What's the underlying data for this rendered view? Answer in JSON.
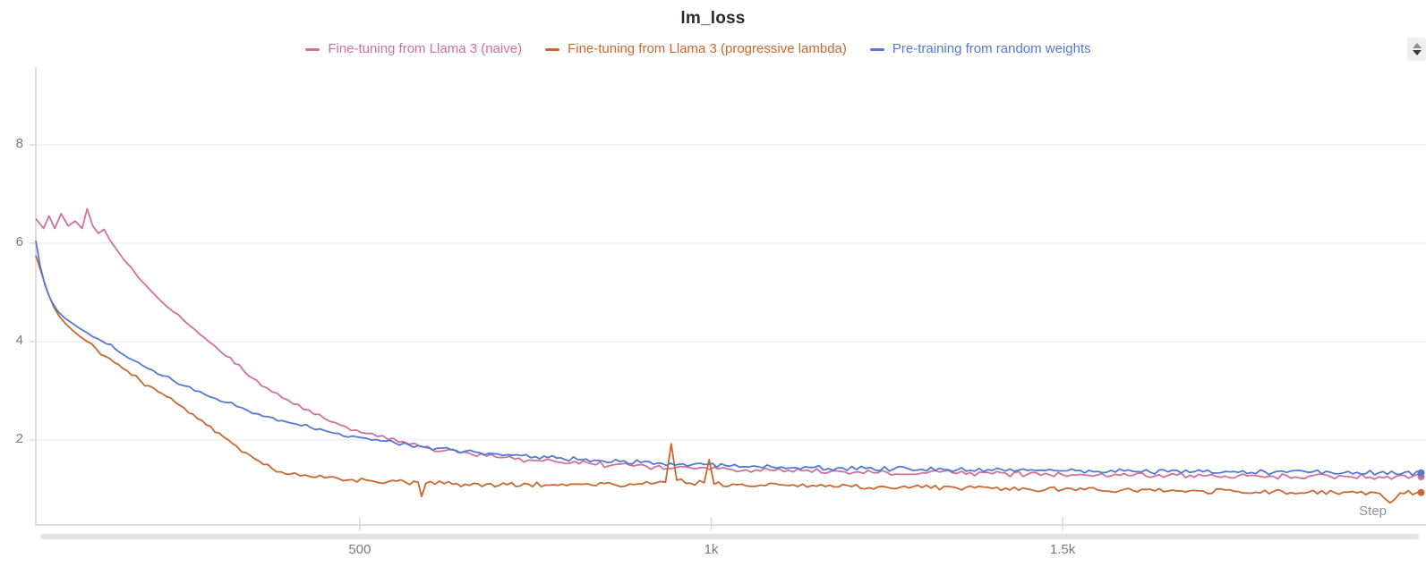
{
  "header": {
    "title": "lm_loss"
  },
  "icons": {
    "stepper": "up-down-stepper-icon",
    "stepper_up": "triangle-up-icon",
    "stepper_down": "triangle-down-icon"
  },
  "chart_data": {
    "type": "line",
    "title": "lm_loss",
    "xlabel": "Step",
    "ylabel": "",
    "grid": "horizontal",
    "legend_position": "top-center",
    "xlim": [
      39,
      2017
    ],
    "ylim": [
      0.27,
      9.58
    ],
    "x_ticks": [
      {
        "value": 500,
        "label": "500"
      },
      {
        "value": 1000,
        "label": "1k"
      },
      {
        "value": 1500,
        "label": "1.5k"
      }
    ],
    "y_ticks": [
      {
        "value": 2,
        "label": "2"
      },
      {
        "value": 4,
        "label": "4"
      },
      {
        "value": 6,
        "label": "6"
      },
      {
        "value": 8,
        "label": "8"
      }
    ],
    "series": [
      {
        "name": "Fine-tuning from Llama 3 (naive)",
        "color": "#d0719c",
        "noise": 0.055,
        "points": [
          [
            39,
            6.5
          ],
          [
            50,
            6.3
          ],
          [
            58,
            6.55
          ],
          [
            66,
            6.3
          ],
          [
            75,
            6.6
          ],
          [
            85,
            6.35
          ],
          [
            95,
            6.45
          ],
          [
            105,
            6.3
          ],
          [
            112,
            6.7
          ],
          [
            120,
            6.35
          ],
          [
            128,
            6.2
          ],
          [
            136,
            6.28
          ],
          [
            145,
            6.05
          ],
          [
            155,
            5.85
          ],
          [
            165,
            5.65
          ],
          [
            175,
            5.5
          ],
          [
            185,
            5.3
          ],
          [
            195,
            5.15
          ],
          [
            205,
            5.0
          ],
          [
            215,
            4.85
          ],
          [
            225,
            4.72
          ],
          [
            235,
            4.6
          ],
          [
            248,
            4.45
          ],
          [
            260,
            4.3
          ],
          [
            272,
            4.15
          ],
          [
            285,
            4.0
          ],
          [
            298,
            3.85
          ],
          [
            310,
            3.7
          ],
          [
            322,
            3.55
          ],
          [
            335,
            3.4
          ],
          [
            348,
            3.25
          ],
          [
            360,
            3.1
          ],
          [
            375,
            2.98
          ],
          [
            390,
            2.85
          ],
          [
            405,
            2.73
          ],
          [
            420,
            2.62
          ],
          [
            435,
            2.52
          ],
          [
            450,
            2.43
          ],
          [
            465,
            2.35
          ],
          [
            480,
            2.27
          ],
          [
            495,
            2.2
          ],
          [
            510,
            2.13
          ],
          [
            525,
            2.07
          ],
          [
            540,
            2.01
          ],
          [
            555,
            1.96
          ],
          [
            570,
            1.91
          ],
          [
            585,
            1.87
          ],
          [
            600,
            1.83
          ],
          [
            620,
            1.78
          ],
          [
            640,
            1.74
          ],
          [
            660,
            1.7
          ],
          [
            680,
            1.67
          ],
          [
            700,
            1.64
          ],
          [
            720,
            1.61
          ],
          [
            740,
            1.59
          ],
          [
            760,
            1.57
          ],
          [
            780,
            1.55
          ],
          [
            800,
            1.53
          ],
          [
            830,
            1.51
          ],
          [
            860,
            1.49
          ],
          [
            890,
            1.47
          ],
          [
            920,
            1.45
          ],
          [
            950,
            1.44
          ],
          [
            980,
            1.42
          ],
          [
            1010,
            1.41
          ],
          [
            1050,
            1.39
          ],
          [
            1090,
            1.38
          ],
          [
            1130,
            1.37
          ],
          [
            1170,
            1.36
          ],
          [
            1210,
            1.35
          ],
          [
            1250,
            1.34
          ],
          [
            1300,
            1.33
          ],
          [
            1350,
            1.32
          ],
          [
            1400,
            1.31
          ],
          [
            1450,
            1.3
          ],
          [
            1500,
            1.29
          ],
          [
            1550,
            1.29
          ],
          [
            1600,
            1.28
          ],
          [
            1650,
            1.28
          ],
          [
            1700,
            1.27
          ],
          [
            1750,
            1.27
          ],
          [
            1800,
            1.26
          ],
          [
            1850,
            1.26
          ],
          [
            1900,
            1.26
          ],
          [
            1950,
            1.25
          ],
          [
            2010,
            1.25
          ]
        ]
      },
      {
        "name": "Fine-tuning from Llama 3 (progressive lambda)",
        "color": "#c8682f",
        "noise": 0.05,
        "points": [
          [
            39,
            5.75
          ],
          [
            48,
            5.35
          ],
          [
            56,
            5.0
          ],
          [
            64,
            4.72
          ],
          [
            72,
            4.52
          ],
          [
            82,
            4.35
          ],
          [
            92,
            4.22
          ],
          [
            102,
            4.1
          ],
          [
            112,
            4.0
          ],
          [
            125,
            3.85
          ],
          [
            138,
            3.7
          ],
          [
            150,
            3.58
          ],
          [
            163,
            3.45
          ],
          [
            175,
            3.32
          ],
          [
            188,
            3.2
          ],
          [
            200,
            3.1
          ],
          [
            213,
            2.98
          ],
          [
            225,
            2.88
          ],
          [
            238,
            2.76
          ],
          [
            250,
            2.65
          ],
          [
            263,
            2.52
          ],
          [
            275,
            2.4
          ],
          [
            288,
            2.27
          ],
          [
            300,
            2.14
          ],
          [
            313,
            2.0
          ],
          [
            325,
            1.87
          ],
          [
            338,
            1.74
          ],
          [
            350,
            1.62
          ],
          [
            363,
            1.5
          ],
          [
            375,
            1.42
          ],
          [
            388,
            1.35
          ],
          [
            400,
            1.3
          ],
          [
            415,
            1.27
          ],
          [
            430,
            1.25
          ],
          [
            450,
            1.23
          ],
          [
            470,
            1.21
          ],
          [
            490,
            1.19
          ],
          [
            515,
            1.17
          ],
          [
            540,
            1.15
          ],
          [
            565,
            1.14
          ],
          [
            583,
            1.14
          ],
          [
            588,
            0.85
          ],
          [
            594,
            1.12
          ],
          [
            620,
            1.11
          ],
          [
            650,
            1.1
          ],
          [
            680,
            1.1
          ],
          [
            710,
            1.09
          ],
          [
            740,
            1.1
          ],
          [
            770,
            1.08
          ],
          [
            800,
            1.1
          ],
          [
            830,
            1.08
          ],
          [
            860,
            1.1
          ],
          [
            890,
            1.09
          ],
          [
            920,
            1.12
          ],
          [
            935,
            1.14
          ],
          [
            943,
            1.92
          ],
          [
            951,
            1.18
          ],
          [
            970,
            1.12
          ],
          [
            990,
            1.13
          ],
          [
            997,
            1.6
          ],
          [
            1004,
            1.1
          ],
          [
            1030,
            1.1
          ],
          [
            1070,
            1.08
          ],
          [
            1110,
            1.07
          ],
          [
            1150,
            1.06
          ],
          [
            1200,
            1.05
          ],
          [
            1250,
            1.04
          ],
          [
            1300,
            1.03
          ],
          [
            1350,
            1.02
          ],
          [
            1400,
            1.01
          ],
          [
            1450,
            1.0
          ],
          [
            1500,
            0.99
          ],
          [
            1550,
            0.98
          ],
          [
            1600,
            0.97
          ],
          [
            1650,
            0.96
          ],
          [
            1700,
            0.96
          ],
          [
            1750,
            0.95
          ],
          [
            1800,
            0.95
          ],
          [
            1850,
            0.94
          ],
          [
            1900,
            0.94
          ],
          [
            1944,
            0.93
          ],
          [
            1966,
            0.72
          ],
          [
            1980,
            0.92
          ],
          [
            2010,
            0.93
          ]
        ]
      },
      {
        "name": "Pre-training from random weights",
        "color": "#5379d6",
        "noise": 0.05,
        "points": [
          [
            39,
            6.05
          ],
          [
            45,
            5.55
          ],
          [
            52,
            5.15
          ],
          [
            60,
            4.85
          ],
          [
            70,
            4.62
          ],
          [
            80,
            4.48
          ],
          [
            90,
            4.38
          ],
          [
            100,
            4.28
          ],
          [
            112,
            4.18
          ],
          [
            128,
            4.05
          ],
          [
            140,
            3.95
          ],
          [
            152,
            3.85
          ],
          [
            165,
            3.72
          ],
          [
            178,
            3.62
          ],
          [
            190,
            3.52
          ],
          [
            205,
            3.42
          ],
          [
            220,
            3.3
          ],
          [
            235,
            3.2
          ],
          [
            250,
            3.1
          ],
          [
            265,
            3.0
          ],
          [
            280,
            2.92
          ],
          [
            295,
            2.84
          ],
          [
            310,
            2.76
          ],
          [
            325,
            2.68
          ],
          [
            340,
            2.6
          ],
          [
            355,
            2.53
          ],
          [
            370,
            2.47
          ],
          [
            390,
            2.39
          ],
          [
            410,
            2.32
          ],
          [
            430,
            2.25
          ],
          [
            450,
            2.19
          ],
          [
            470,
            2.13
          ],
          [
            490,
            2.08
          ],
          [
            510,
            2.03
          ],
          [
            530,
            1.98
          ],
          [
            550,
            1.94
          ],
          [
            570,
            1.9
          ],
          [
            590,
            1.86
          ],
          [
            610,
            1.83
          ],
          [
            630,
            1.8
          ],
          [
            650,
            1.77
          ],
          [
            670,
            1.74
          ],
          [
            690,
            1.72
          ],
          [
            710,
            1.7
          ],
          [
            730,
            1.68
          ],
          [
            750,
            1.66
          ],
          [
            780,
            1.63
          ],
          [
            810,
            1.6
          ],
          [
            840,
            1.58
          ],
          [
            870,
            1.56
          ],
          [
            900,
            1.54
          ],
          [
            930,
            1.52
          ],
          [
            960,
            1.51
          ],
          [
            990,
            1.5
          ],
          [
            1020,
            1.48
          ],
          [
            1060,
            1.47
          ],
          [
            1100,
            1.45
          ],
          [
            1140,
            1.44
          ],
          [
            1180,
            1.43
          ],
          [
            1220,
            1.42
          ],
          [
            1260,
            1.41
          ],
          [
            1300,
            1.4
          ],
          [
            1350,
            1.39
          ],
          [
            1400,
            1.38
          ],
          [
            1450,
            1.38
          ],
          [
            1500,
            1.37
          ],
          [
            1550,
            1.36
          ],
          [
            1600,
            1.36
          ],
          [
            1650,
            1.35
          ],
          [
            1700,
            1.35
          ],
          [
            1750,
            1.34
          ],
          [
            1800,
            1.34
          ],
          [
            1850,
            1.34
          ],
          [
            1900,
            1.33
          ],
          [
            1950,
            1.33
          ],
          [
            2010,
            1.33
          ]
        ]
      }
    ]
  }
}
